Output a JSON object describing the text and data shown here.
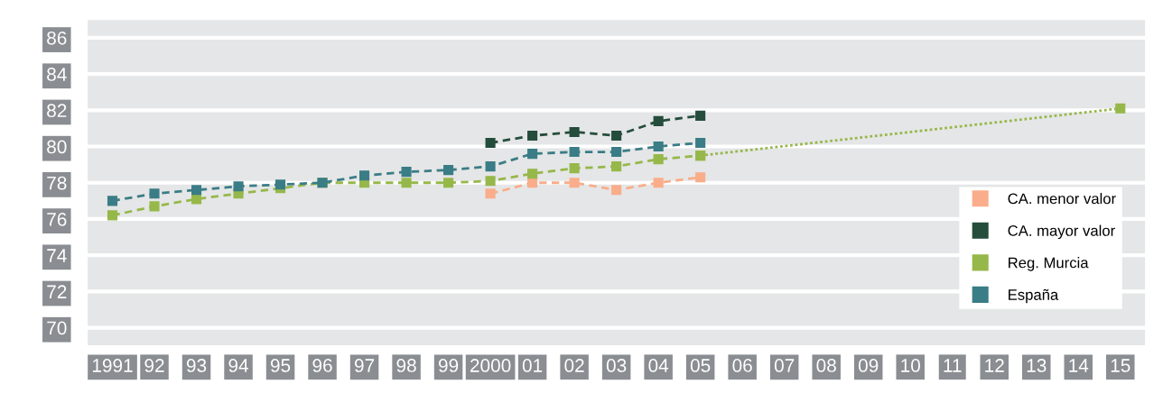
{
  "chart_data": {
    "type": "line",
    "categories": [
      "1991",
      "92",
      "93",
      "94",
      "95",
      "96",
      "97",
      "98",
      "99",
      "2000",
      "01",
      "02",
      "03",
      "04",
      "05",
      "06",
      "07",
      "08",
      "09",
      "10",
      "11",
      "12",
      "13",
      "14",
      "15"
    ],
    "series": [
      {
        "name": "CA. menor valor",
        "color": "#f9ad8a",
        "line_style": "dashed",
        "values": [
          null,
          null,
          null,
          null,
          null,
          null,
          null,
          null,
          null,
          77.4,
          78.0,
          78.0,
          77.6,
          78.0,
          78.3,
          null,
          null,
          null,
          null,
          null,
          null,
          null,
          null,
          null,
          null
        ]
      },
      {
        "name": "CA. mayor valor",
        "color": "#254d3c",
        "line_style": "dashed",
        "values": [
          null,
          null,
          null,
          null,
          null,
          null,
          null,
          null,
          null,
          80.2,
          80.6,
          80.8,
          80.6,
          81.4,
          81.7,
          null,
          null,
          null,
          null,
          null,
          null,
          null,
          null,
          null,
          null
        ]
      },
      {
        "name": "Reg. Murcia",
        "color": "#96b84a",
        "line_style": "dashed",
        "values": [
          76.2,
          76.7,
          77.1,
          77.4,
          77.7,
          78.0,
          78.0,
          78.0,
          78.0,
          78.1,
          78.5,
          78.8,
          78.9,
          79.3,
          79.5,
          null,
          null,
          null,
          null,
          null,
          null,
          null,
          null,
          null,
          null
        ]
      },
      {
        "name": "España",
        "color": "#3a7d86",
        "line_style": "dashed",
        "values": [
          77.0,
          77.4,
          77.6,
          77.8,
          77.9,
          78.0,
          78.4,
          78.6,
          78.7,
          78.9,
          79.6,
          79.7,
          79.7,
          80.0,
          80.2,
          null,
          null,
          null,
          null,
          null,
          null,
          null,
          null,
          null,
          null
        ]
      },
      {
        "color": "#96b84a",
        "line_style": "dotted",
        "values": [
          null,
          null,
          null,
          null,
          null,
          null,
          null,
          null,
          null,
          null,
          null,
          null,
          null,
          null,
          79.5,
          null,
          null,
          null,
          null,
          null,
          null,
          null,
          null,
          null,
          82.1
        ]
      }
    ],
    "ylim": [
      69,
      87
    ],
    "yticks": [
      70,
      72,
      74,
      76,
      78,
      80,
      82,
      84,
      86
    ],
    "marker": "square",
    "grid": "y",
    "legend": "right"
  }
}
